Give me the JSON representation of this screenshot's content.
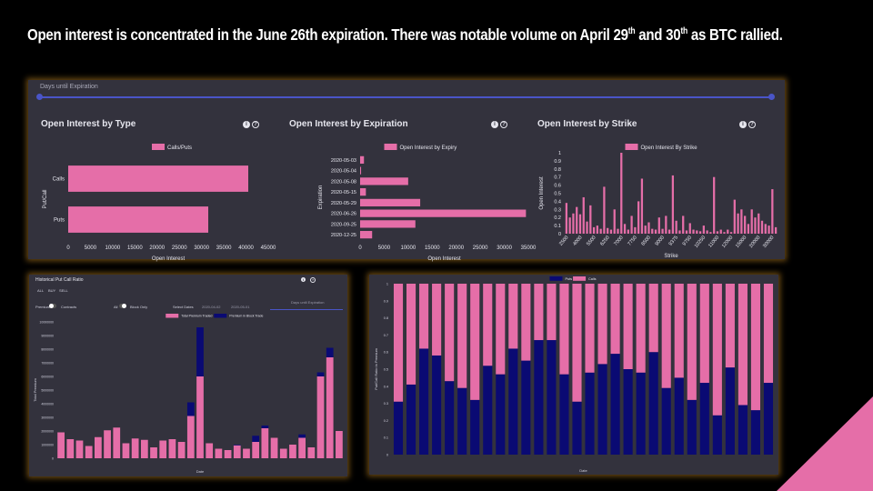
{
  "headline": {
    "text_a": "Open interest is concentrated in the June 26th expiration. There was notable volume on April 29",
    "sup_a": "th",
    "text_b": " and 30",
    "sup_b": "th",
    "text_c": " as BTC rallied."
  },
  "colors": {
    "pink": "#e56ea8",
    "navy": "#0a0a73",
    "panel": "#33323d",
    "accent": "#4a55c8"
  },
  "top_panel": {
    "slider_label": "Days until Expiration",
    "type_title": "Open Interest by Type",
    "expiry_title": "Open Interest by Expiration",
    "strike_title": "Open Interest by Strike",
    "info_icon": "info-icon",
    "help_icon": "help-icon"
  },
  "bl_panel": {
    "title": "Historical Put Call Ratio",
    "range_buttons": [
      "ALL",
      "BUY",
      "SELL"
    ],
    "toggle_left": "Premium",
    "toggle_left_b": "Contracts",
    "toggle_mid": "All",
    "toggle_mid_b": "Block Only",
    "select_dates": "Select Dates",
    "date_from": "2020-04-02",
    "date_to": "2020-05-01",
    "slider_label": "Days until Expiration"
  },
  "chart_data": [
    {
      "type": "bar",
      "orientation": "horizontal",
      "legend": [
        "Calls/Puts"
      ],
      "categories": [
        "Calls",
        "Puts"
      ],
      "values": [
        40500,
        31500
      ],
      "xlabel": "Open Interest",
      "ylabel": "Put/Call",
      "xlim": [
        0,
        45000
      ],
      "xticks": [
        "0",
        "5000",
        "10000",
        "15000",
        "20000",
        "25000",
        "30000",
        "35000",
        "40000",
        "45000"
      ]
    },
    {
      "type": "bar",
      "orientation": "horizontal",
      "legend": [
        "Open Interest by Expiry"
      ],
      "categories": [
        "2020-05-03",
        "2020-05-04",
        "2020-05-08",
        "2020-05-15",
        "2020-05-29",
        "2020-06-26",
        "2020-09-25",
        "2020-12-25"
      ],
      "values": [
        800,
        200,
        10000,
        1200,
        12500,
        34500,
        11500,
        2500
      ],
      "xlabel": "Open Interest",
      "ylabel": "Expiration",
      "xlim": [
        0,
        35000
      ],
      "xticks": [
        "0",
        "5000",
        "10000",
        "15000",
        "20000",
        "25000",
        "30000",
        "35000"
      ]
    },
    {
      "type": "bar",
      "legend": [
        "Open Interest By Strike"
      ],
      "xlabel": "Strike",
      "ylabel": "Open Interest",
      "ylim": [
        0,
        1
      ],
      "yticks": [
        "0",
        "0.1",
        "0.2",
        "0.3",
        "0.4",
        "0.5",
        "0.6",
        "0.7",
        "0.8",
        "0.9",
        "1"
      ],
      "xticks": [
        "2500",
        "4000",
        "5500",
        "6250",
        "7000",
        "7750",
        "8500",
        "9000",
        "9375",
        "9750",
        "10250",
        "11000",
        "12000",
        "15000",
        "20000",
        "30000"
      ],
      "values": [
        0.38,
        0.2,
        0.25,
        0.33,
        0.24,
        0.45,
        0.15,
        0.35,
        0.08,
        0.1,
        0.06,
        0.58,
        0.07,
        0.05,
        0.3,
        0.06,
        1.0,
        0.12,
        0.05,
        0.22,
        0.08,
        0.4,
        0.68,
        0.1,
        0.14,
        0.06,
        0.05,
        0.2,
        0.06,
        0.22,
        0.05,
        0.72,
        0.16,
        0.04,
        0.22,
        0.04,
        0.13,
        0.05,
        0.04,
        0.03,
        0.1,
        0.04,
        0.02,
        0.7,
        0.03,
        0.05,
        0.02,
        0.05,
        0.02,
        0.42,
        0.25,
        0.3,
        0.22,
        0.12,
        0.3,
        0.2,
        0.25,
        0.16,
        0.12,
        0.1,
        0.55,
        0.08
      ]
    },
    {
      "type": "bar",
      "stacked": true,
      "legend": [
        "Total Premium Traded",
        "Premium in Block Trade"
      ],
      "xlabel": "Date",
      "ylabel": "Total Premium",
      "ylim": [
        0,
        10000000
      ],
      "yticks": [
        "0",
        "1000000",
        "2000000",
        "3000000",
        "4000000",
        "5000000",
        "6000000",
        "7000000",
        "8000000",
        "9000000",
        "10000000"
      ],
      "series": [
        {
          "name": "Total Premium Traded",
          "values": [
            1900000,
            1400000,
            1300000,
            900000,
            1550000,
            2050000,
            2250000,
            1100000,
            1450000,
            1350000,
            800000,
            1300000,
            1400000,
            1200000,
            3100000,
            6000000,
            1100000,
            700000,
            600000,
            950000,
            700000,
            1200000,
            2200000,
            1500000,
            700000,
            1000000,
            1500000,
            800000,
            6000000,
            7400000,
            2000000
          ]
        },
        {
          "name": "Premium in Block Trade",
          "values": [
            0,
            0,
            0,
            0,
            0,
            0,
            0,
            0,
            0,
            0,
            0,
            0,
            0,
            0,
            1000000,
            3600000,
            0,
            0,
            0,
            50000,
            0,
            450000,
            200000,
            0,
            0,
            0,
            250000,
            0,
            300000,
            700000,
            0
          ]
        }
      ]
    },
    {
      "type": "bar",
      "stacked": true,
      "legend": [
        "Puts",
        "Calls"
      ],
      "xlabel": "Date",
      "ylabel": "Put/Call Ratio in Premium",
      "ylim": [
        0,
        1
      ],
      "yticks": [
        "0",
        "0.1",
        "0.2",
        "0.3",
        "0.4",
        "0.5",
        "0.6",
        "0.7",
        "0.8",
        "0.9",
        "1"
      ],
      "series": [
        {
          "name": "Puts",
          "values": [
            0.31,
            0.41,
            0.62,
            0.58,
            0.43,
            0.39,
            0.32,
            0.52,
            0.47,
            0.62,
            0.55,
            0.67,
            0.67,
            0.47,
            0.31,
            0.48,
            0.53,
            0.59,
            0.5,
            0.48,
            0.6,
            0.39,
            0.45,
            0.32,
            0.42,
            0.23,
            0.51,
            0.29,
            0.26,
            0.42
          ]
        },
        {
          "name": "Calls",
          "values": [
            0.69,
            0.59,
            0.38,
            0.42,
            0.57,
            0.61,
            0.68,
            0.48,
            0.53,
            0.38,
            0.45,
            0.33,
            0.33,
            0.53,
            0.69,
            0.52,
            0.47,
            0.41,
            0.5,
            0.52,
            0.4,
            0.61,
            0.55,
            0.68,
            0.58,
            0.77,
            0.49,
            0.71,
            0.74,
            0.58
          ]
        }
      ]
    }
  ]
}
